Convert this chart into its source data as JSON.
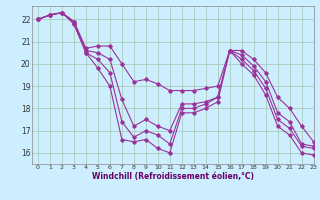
{
  "xlabel": "Windchill (Refroidissement éolien,°C)",
  "background_color": "#cceeff",
  "grid_color": "#aaccbb",
  "line_color": "#993399",
  "xlim": [
    -0.5,
    23
  ],
  "ylim": [
    15.5,
    22.6
  ],
  "xticks": [
    0,
    1,
    2,
    3,
    4,
    5,
    6,
    7,
    8,
    9,
    10,
    11,
    12,
    13,
    14,
    15,
    16,
    17,
    18,
    19,
    20,
    21,
    22,
    23
  ],
  "yticks": [
    16,
    17,
    18,
    19,
    20,
    21,
    22
  ],
  "series": [
    [
      22.0,
      22.2,
      22.3,
      21.8,
      20.5,
      19.8,
      19.0,
      16.6,
      16.5,
      16.6,
      16.2,
      16.0,
      17.8,
      17.8,
      18.0,
      18.3,
      20.6,
      20.0,
      19.5,
      18.6,
      17.2,
      16.8,
      16.0,
      15.9
    ],
    [
      22.0,
      22.2,
      22.3,
      21.8,
      20.5,
      20.2,
      19.6,
      17.4,
      16.7,
      17.0,
      16.8,
      16.4,
      18.0,
      18.0,
      18.2,
      18.5,
      20.6,
      20.2,
      19.7,
      18.9,
      17.5,
      17.1,
      16.3,
      16.2
    ],
    [
      22.0,
      22.2,
      22.3,
      21.9,
      20.6,
      20.5,
      20.2,
      18.4,
      17.2,
      17.5,
      17.2,
      17.0,
      18.2,
      18.2,
      18.3,
      18.5,
      20.6,
      20.4,
      19.9,
      19.2,
      17.8,
      17.4,
      16.4,
      16.3
    ],
    [
      22.0,
      22.2,
      22.3,
      21.9,
      20.7,
      20.8,
      20.8,
      20.0,
      19.2,
      19.3,
      19.1,
      18.8,
      18.8,
      18.8,
      18.9,
      19.0,
      20.6,
      20.6,
      20.2,
      19.6,
      18.5,
      18.0,
      17.2,
      16.5
    ]
  ]
}
